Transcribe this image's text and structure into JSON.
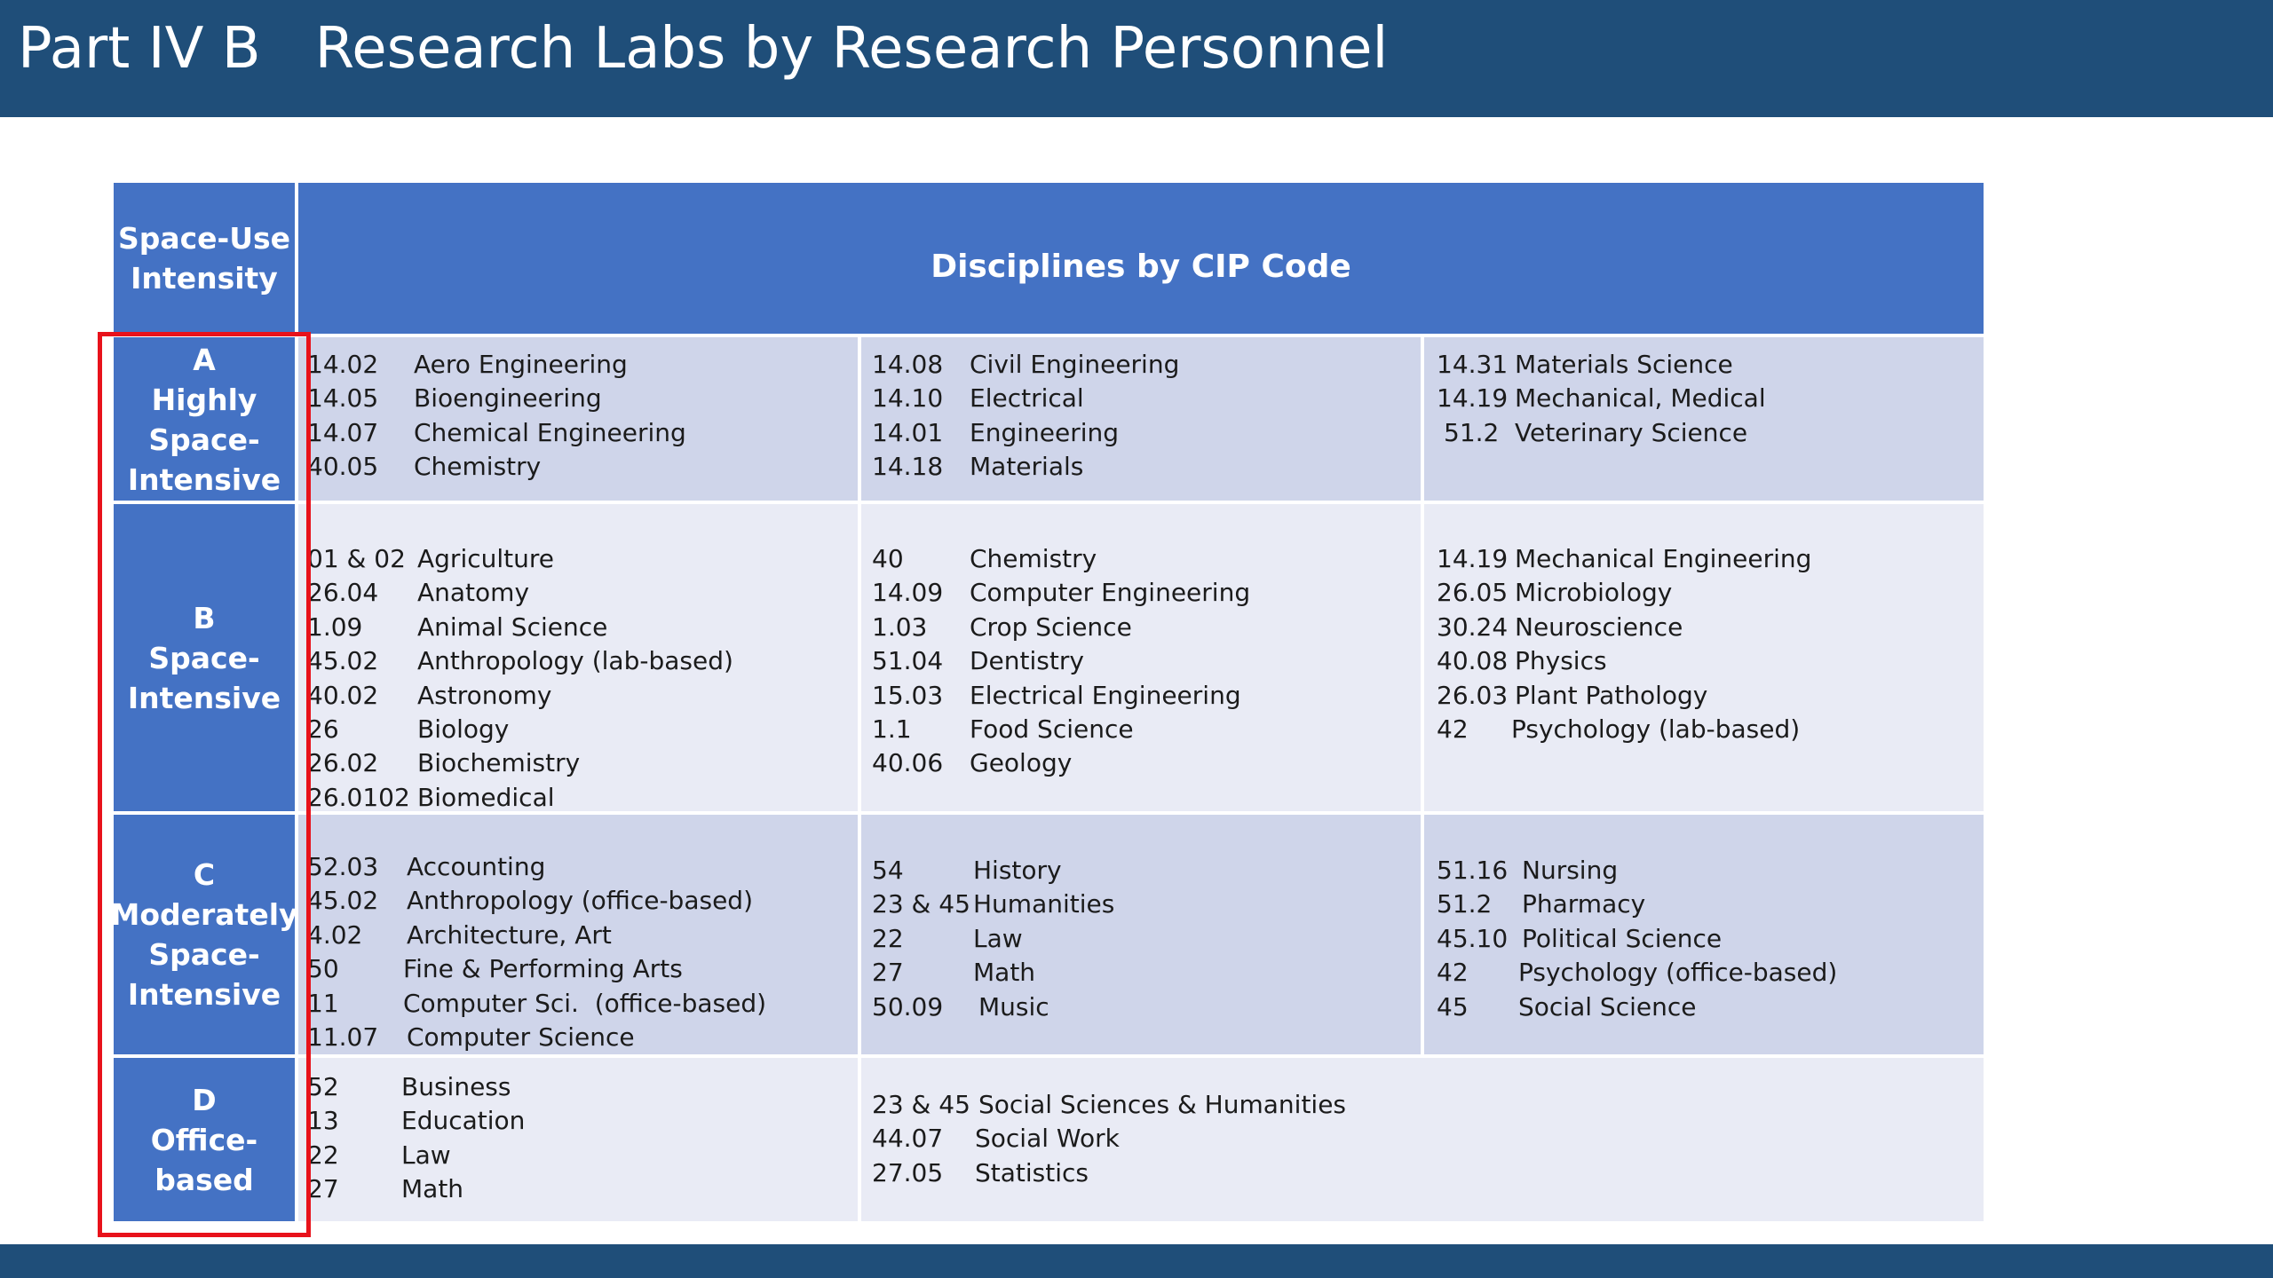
{
  "slide": {
    "title": "Part IV B   Research Labs by Research Personnel"
  },
  "table": {
    "header": {
      "intensity": "Space-Use\nIntensity",
      "disciplines": "Disciplines by CIP Code"
    },
    "categories": [
      {
        "letter": "A",
        "label": "Highly\nSpace-\nIntensive",
        "columns": [
          [
            {
              "code": "14.02",
              "name": "Aero Engineering"
            },
            {
              "code": "14.05",
              "name": "Bioengineering"
            },
            {
              "code": "14.07",
              "name": "Chemical Engineering"
            },
            {
              "code": "40.05",
              "name": "Chemistry"
            }
          ],
          [
            {
              "code": "14.08",
              "name": "Civil Engineering"
            },
            {
              "code": "14.10",
              "name": "Electrical"
            },
            {
              "code": "14.01",
              "name": "Engineering"
            },
            {
              "code": "14.18",
              "name": "Materials"
            }
          ],
          [
            {
              "code": "14.31",
              "name": "Materials Science"
            },
            {
              "code": "14.19",
              "name": "Mechanical, Medical"
            },
            {
              "code": "51.2",
              "name": "Veterinary Science"
            }
          ]
        ]
      },
      {
        "letter": "B",
        "label": "Space-\nIntensive",
        "columns": [
          [
            {
              "code": "01 & 02",
              "name": "Agriculture"
            },
            {
              "code": "26.04",
              "name": "Anatomy"
            },
            {
              "code": "1.09",
              "name": "Animal Science"
            },
            {
              "code": "45.02",
              "name": "Anthropology (lab-based)"
            },
            {
              "code": "40.02",
              "name": "Astronomy"
            },
            {
              "code": "26",
              "name": "Biology"
            },
            {
              "code": "26.02",
              "name": "Biochemistry"
            },
            {
              "code": "26.0102",
              "name": "Biomedical"
            }
          ],
          [
            {
              "code": "40",
              "name": "Chemistry"
            },
            {
              "code": "14.09",
              "name": "Computer Engineering"
            },
            {
              "code": "1.03",
              "name": "Crop Science"
            },
            {
              "code": "51.04",
              "name": "Dentistry"
            },
            {
              "code": "15.03",
              "name": "Electrical Engineering"
            },
            {
              "code": "1.1",
              "name": "Food Science"
            },
            {
              "code": "40.06",
              "name": "Geology"
            }
          ],
          [
            {
              "code": "14.19",
              "name": "Mechanical Engineering"
            },
            {
              "code": "26.05",
              "name": "Microbiology"
            },
            {
              "code": "30.24",
              "name": "Neuroscience"
            },
            {
              "code": "40.08",
              "name": "Physics"
            },
            {
              "code": "26.03",
              "name": "Plant Pathology"
            },
            {
              "code": "42",
              "name": "Psychology (lab-based)"
            }
          ]
        ]
      },
      {
        "letter": "C",
        "label": "Moderately\nSpace-\nIntensive",
        "columns": [
          [
            {
              "code": "52.03",
              "name": "Accounting"
            },
            {
              "code": "45.02",
              "name": "Anthropology (office-based)"
            },
            {
              "code": "4.02",
              "name": "Architecture, Art"
            },
            {
              "code": "50",
              "name": "Fine & Performing Arts"
            },
            {
              "code": "11",
              "name": "Computer Sci.  (office-based)"
            },
            {
              "code": "11.07",
              "name": "Computer Science"
            }
          ],
          [
            {
              "code": "54",
              "name": "History"
            },
            {
              "code": "23 & 45",
              "name": "Humanities"
            },
            {
              "code": "22",
              "name": "Law"
            },
            {
              "code": "27",
              "name": "Math"
            },
            {
              "code": "50.09",
              "name": "Music"
            }
          ],
          [
            {
              "code": "51.16",
              "name": "Nursing"
            },
            {
              "code": "51.2",
              "name": "Pharmacy"
            },
            {
              "code": "45.10",
              "name": "Political Science"
            },
            {
              "code": "42",
              "name": "Psychology (office-based)"
            },
            {
              "code": "45",
              "name": "Social Science"
            }
          ]
        ]
      },
      {
        "letter": "D",
        "label": "Office-\nbased",
        "columns": [
          [
            {
              "code": "52",
              "name": "Business"
            },
            {
              "code": "13",
              "name": "Education"
            },
            {
              "code": "22",
              "name": "Law"
            },
            {
              "code": "27",
              "name": "Math"
            }
          ],
          [
            {
              "code": "23 & 45",
              "name": "Social Sciences & Humanities"
            },
            {
              "code": "44.07",
              "name": "Social Work"
            },
            {
              "code": "27.05",
              "name": "Statistics"
            }
          ]
        ]
      }
    ]
  },
  "colors": {
    "title_bar": "#1f4e79",
    "header_fill": "#4472c4",
    "row_dark": "#cfd5ea",
    "row_light": "#e9ebf5",
    "highlight": "#e8121b"
  }
}
